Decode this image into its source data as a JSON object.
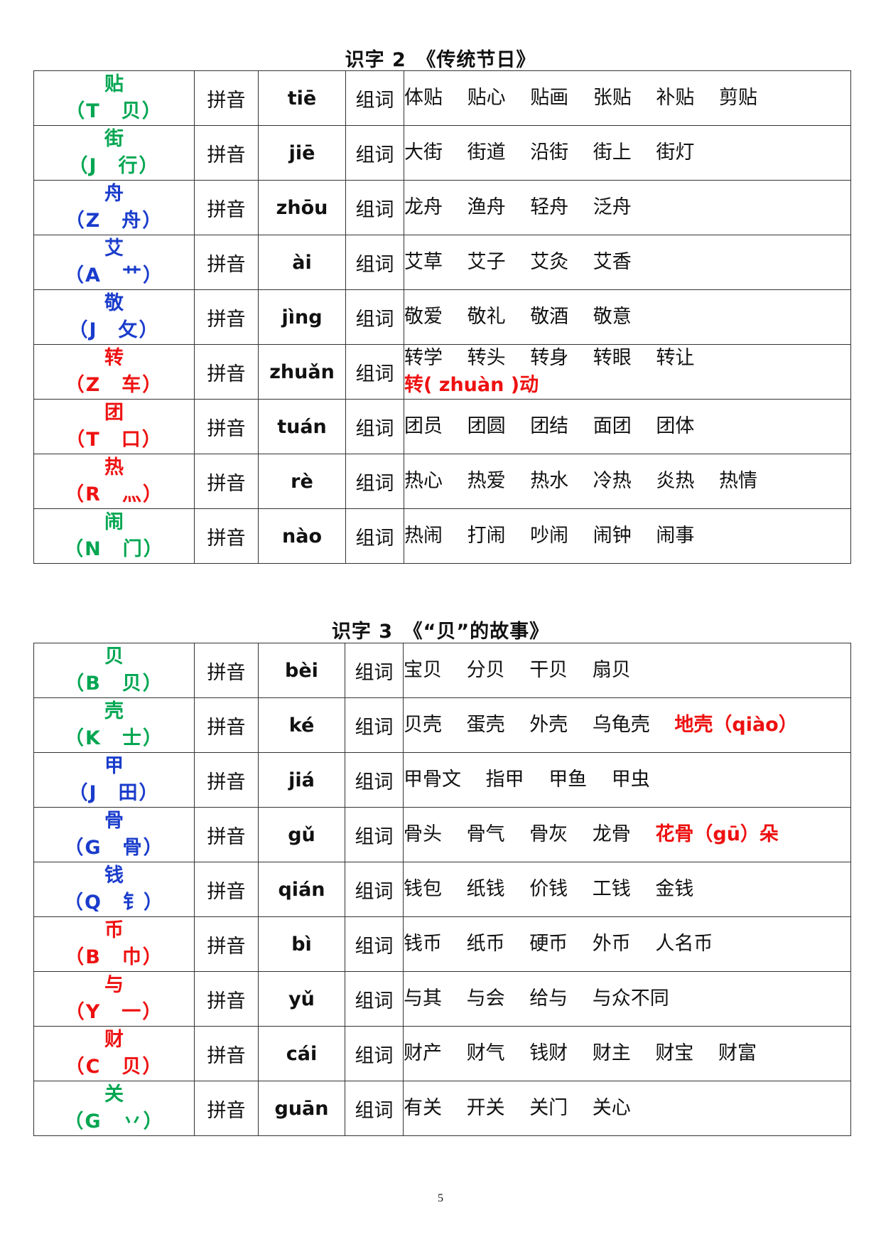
{
  "colors": {
    "green": "#00a651",
    "blue": "#1a3ccc",
    "red": "#ee1111"
  },
  "label_pinyin": "拼音",
  "label_words": "组词",
  "sections": [
    {
      "title": "识字 2　《传统节日》",
      "rows": [
        {
          "char": "贴",
          "hint": "（T　贝）",
          "color": "green",
          "pinyin": "tiē",
          "words": [
            "体贴",
            "贴心",
            "贴画",
            "张贴",
            "补贴",
            "剪贴"
          ]
        },
        {
          "char": "街",
          "hint": "（J　行）",
          "color": "green",
          "pinyin": "jiē",
          "words": [
            "大街",
            "街道",
            "沿街",
            "街上",
            "街灯"
          ]
        },
        {
          "char": "舟",
          "hint": "（Z　舟）",
          "color": "blue",
          "pinyin": "zhōu",
          "words": [
            "龙舟",
            "渔舟",
            "轻舟",
            "泛舟"
          ]
        },
        {
          "char": "艾",
          "hint": "（A　艹）",
          "color": "blue",
          "pinyin": "ài",
          "words": [
            "艾草",
            "艾子",
            "艾灸",
            "艾香"
          ]
        },
        {
          "char": "敬",
          "hint": "（J　攵）",
          "color": "blue",
          "pinyin": "jìng",
          "words": [
            "敬爱",
            "敬礼",
            "敬酒",
            "敬意"
          ]
        },
        {
          "char": "转",
          "hint": "（Z　车）",
          "color": "red",
          "pinyin": "zhuǎn",
          "words": [
            "转学",
            "转头",
            "转身",
            "转眼",
            "转让",
            "转( zhuàn )动"
          ],
          "highlight": "转( zhuàn )动"
        },
        {
          "char": "团",
          "hint": "（T　口）",
          "color": "red",
          "pinyin": "tuán",
          "words": [
            "团员",
            "团圆",
            "团结",
            "面团",
            "团体"
          ]
        },
        {
          "char": "热",
          "hint": "（R　灬）",
          "color": "red",
          "pinyin": "rè",
          "words": [
            "热心",
            "热爱",
            "热水",
            "冷热",
            "炎热",
            "热情"
          ]
        },
        {
          "char": "闹",
          "hint": "（N　门）",
          "color": "green",
          "pinyin": "nào",
          "words": [
            "热闹",
            "打闹",
            "吵闹",
            "闹钟",
            "闹事"
          ]
        }
      ]
    },
    {
      "title": "识字 3　《“贝”的故事》",
      "rows": [
        {
          "char": "贝",
          "hint": "（B　贝）",
          "color": "green",
          "pinyin": "bèi",
          "words": [
            "宝贝",
            "分贝",
            "干贝",
            "扇贝"
          ]
        },
        {
          "char": "壳",
          "hint": "（K　士）",
          "color": "green",
          "pinyin": "ké",
          "words": [
            "贝壳",
            "蛋壳",
            "外壳",
            "乌龟壳",
            "地壳（qiào）"
          ],
          "highlight": "地壳（qiào）"
        },
        {
          "char": "甲",
          "hint": "（J　田）",
          "color": "blue",
          "pinyin": "jiá",
          "words": [
            "甲骨文",
            "指甲",
            "甲鱼",
            "甲虫"
          ]
        },
        {
          "char": "骨",
          "hint": "（G　骨）",
          "color": "blue",
          "pinyin": "gǔ",
          "words": [
            "骨头",
            "骨气",
            "骨灰",
            "龙骨",
            "花骨（gū）朵"
          ],
          "highlight": "花骨（gū）朵"
        },
        {
          "char": "钱",
          "hint": "（Q　钅）",
          "color": "blue",
          "pinyin": "qián",
          "words": [
            "钱包",
            "纸钱",
            "价钱",
            "工钱",
            "金钱"
          ]
        },
        {
          "char": "币",
          "hint": "（B　巾）",
          "color": "red",
          "pinyin": "bì",
          "words": [
            "钱币",
            "纸币",
            "硬币",
            "外币",
            "人名币"
          ]
        },
        {
          "char": "与",
          "hint": "（Y　一）",
          "color": "red",
          "pinyin": "yǔ",
          "words": [
            "与其",
            "与会",
            "给与",
            "与众不同"
          ]
        },
        {
          "char": "财",
          "hint": "（C　贝）",
          "color": "red",
          "pinyin": "cái",
          "words": [
            "财产",
            "财气",
            "钱财",
            "财主",
            "财宝",
            "财富"
          ]
        },
        {
          "char": "关",
          "hint": "（G　丷）",
          "color": "green",
          "pinyin": "guān",
          "words": [
            "有关",
            "开关",
            "关门",
            "关心"
          ]
        }
      ]
    }
  ],
  "page_number": "5"
}
